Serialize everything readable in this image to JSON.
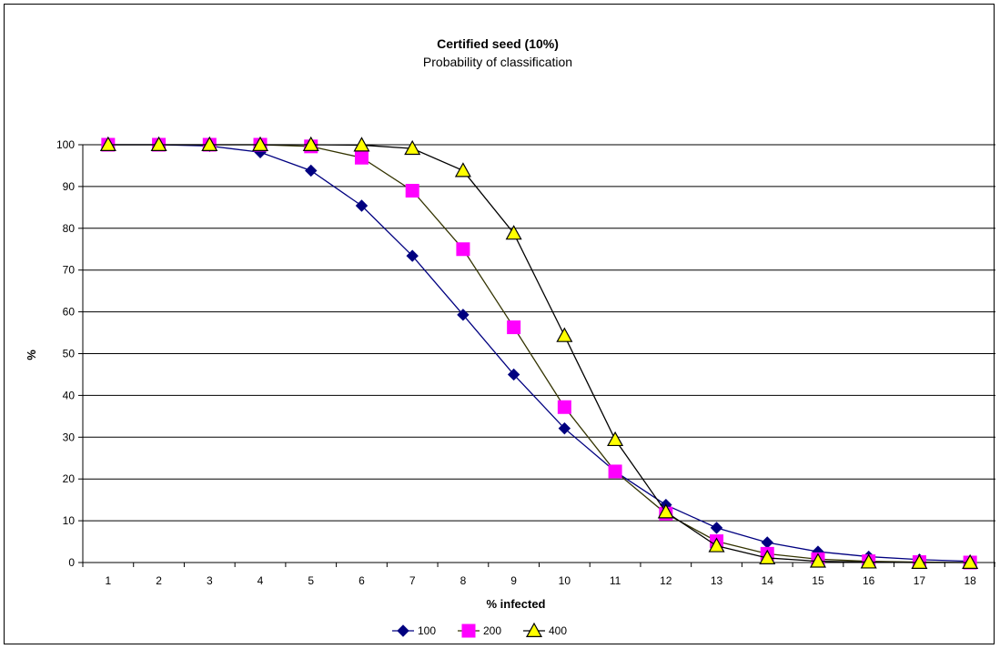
{
  "chart_data": {
    "type": "line",
    "title": "Certified seed (10%)",
    "subtitle": "Probability of classification",
    "xlabel": "% infected",
    "ylabel": "%",
    "categories": [
      "1",
      "2",
      "3",
      "4",
      "5",
      "6",
      "7",
      "8",
      "9",
      "10",
      "11",
      "12",
      "13",
      "14",
      "15",
      "16",
      "17",
      "18"
    ],
    "ylim": [
      0,
      100
    ],
    "yticks": [
      0,
      10,
      20,
      30,
      40,
      50,
      60,
      70,
      80,
      90,
      100
    ],
    "grid": "horizontal",
    "legend_position": "bottom",
    "series": [
      {
        "name": "100",
        "color": "#000080",
        "marker": "diamond",
        "values": [
          100,
          100,
          99.7,
          98.2,
          93.8,
          85.4,
          73.4,
          59.3,
          45.0,
          32.1,
          21.8,
          13.8,
          8.3,
          4.8,
          2.6,
          1.4,
          0.7,
          0.3
        ]
      },
      {
        "name": "200",
        "color": "#ff00ff",
        "marker": "square",
        "values": [
          100,
          100,
          100,
          100,
          99.6,
          96.9,
          89.0,
          75.0,
          56.3,
          37.2,
          21.8,
          11.7,
          5.1,
          2.1,
          0.8,
          0.3,
          0.1,
          0.0
        ]
      },
      {
        "name": "400",
        "color": "#ffff00",
        "marker": "triangle",
        "values": [
          100,
          100,
          100,
          100,
          100,
          99.9,
          99.1,
          93.8,
          78.8,
          54.3,
          29.4,
          12.1,
          4.0,
          1.1,
          0.3,
          0.1,
          0.0,
          0.0
        ]
      }
    ]
  }
}
